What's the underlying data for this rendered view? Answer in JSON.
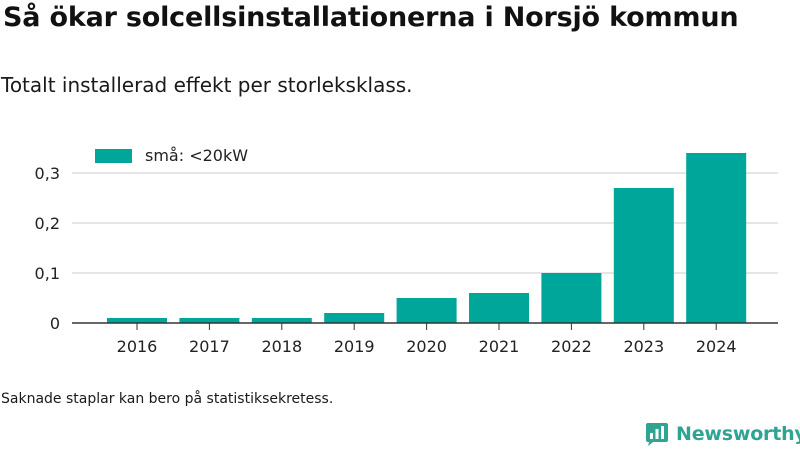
{
  "title": "Så ökar solcellsinstallationerna i Norsjö kommun",
  "subtitle": "Totalt installerad effekt per storleksklass.",
  "footnote": "Saknade staplar kan bero på statistiksekretess.",
  "brand": {
    "name": "Newsworthy",
    "icon": "bar-chart-speech-bubble-icon"
  },
  "chart_data": {
    "type": "bar",
    "categories": [
      "2016",
      "2017",
      "2018",
      "2019",
      "2020",
      "2021",
      "2022",
      "2023",
      "2024"
    ],
    "series": [
      {
        "name": "små: <20kW",
        "color": "#00a699",
        "values": [
          0.01,
          0.01,
          0.01,
          0.02,
          0.05,
          0.06,
          0.1,
          0.27,
          0.34
        ]
      }
    ],
    "yticks": [
      0,
      0.1,
      0.2,
      0.3
    ],
    "ytick_labels": [
      "0",
      "0,1",
      "0,2",
      "0,3"
    ],
    "ylim": [
      0,
      0.35
    ],
    "grid": true,
    "legend_position": "top-left",
    "xlabel": "",
    "ylabel": ""
  },
  "colors": {
    "bar": "#00a699",
    "grid": "#dddddd",
    "axis": "#333333",
    "brand": "#2fa492"
  }
}
